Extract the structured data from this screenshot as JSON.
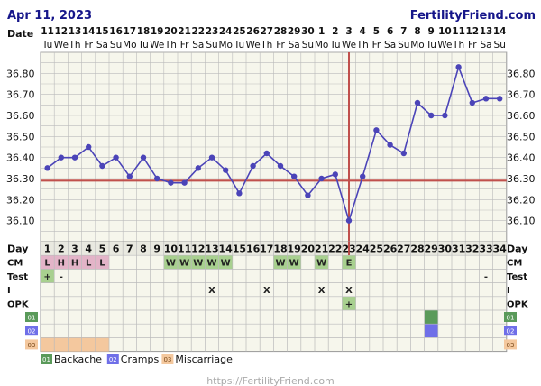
{
  "header": {
    "date": "Apr 11, 2023",
    "brand": "FertilityFriend.com",
    "footer_url": "https://FertilityFriend.com"
  },
  "row_labels": {
    "date": "Date",
    "day": "Day",
    "cm": "CM",
    "test": "Test",
    "intercourse": "I",
    "opk": "OPK"
  },
  "dates": [
    "11",
    "12",
    "13",
    "14",
    "15",
    "16",
    "17",
    "18",
    "19",
    "20",
    "21",
    "22",
    "23",
    "24",
    "25",
    "26",
    "27",
    "28",
    "29",
    "30",
    "1",
    "2",
    "3",
    "4",
    "5",
    "6",
    "7",
    "8",
    "9",
    "10",
    "11",
    "12",
    "13",
    "14"
  ],
  "weekdays": [
    "Tu",
    "We",
    "Th",
    "Fr",
    "Sa",
    "Su",
    "Mo",
    "Tu",
    "We",
    "Th",
    "Fr",
    "Sa",
    "Su",
    "Mo",
    "Tu",
    "We",
    "Th",
    "Fr",
    "Sa",
    "Su",
    "Mo",
    "Tu",
    "We",
    "Th",
    "Fr",
    "Sa",
    "Su",
    "Mo",
    "Tu",
    "We",
    "Th",
    "Fr",
    "Sa",
    "Su"
  ],
  "day_numbers": [
    "1",
    "2",
    "3",
    "4",
    "5",
    "6",
    "7",
    "8",
    "9",
    "10",
    "11",
    "12",
    "13",
    "14",
    "15",
    "16",
    "17",
    "18",
    "19",
    "20",
    "21",
    "22",
    "23",
    "24",
    "25",
    "26",
    "27",
    "28",
    "29",
    "30",
    "31",
    "32",
    "33",
    "34"
  ],
  "chart_data": {
    "type": "line",
    "x": [
      1,
      2,
      3,
      4,
      5,
      6,
      7,
      8,
      9,
      10,
      11,
      12,
      13,
      14,
      15,
      16,
      17,
      18,
      19,
      20,
      21,
      22,
      23,
      24,
      25,
      26,
      27,
      28,
      29,
      30,
      31,
      32,
      33,
      34
    ],
    "series": [
      {
        "values": [
          36.35,
          36.4,
          36.4,
          36.45,
          36.36,
          36.4,
          36.31,
          36.4,
          36.3,
          36.28,
          36.28,
          36.35,
          36.4,
          36.34,
          36.23,
          36.36,
          36.42,
          36.36,
          36.31,
          36.22,
          36.3,
          36.32,
          36.1,
          36.31,
          36.53,
          36.46,
          36.42,
          36.66,
          36.6,
          36.6,
          36.83,
          36.66,
          36.68,
          36.68
        ]
      }
    ],
    "yticks": [
      36.1,
      36.2,
      36.3,
      36.4,
      36.5,
      36.6,
      36.7,
      36.8
    ],
    "ylim": [
      36.0,
      36.9
    ],
    "coverline": 36.29,
    "ovulation_day": 23,
    "grid": true,
    "line_color": "#4b44b8",
    "coverline_color": "#c0504d",
    "ovulation_color": "#c0504d"
  },
  "rows": {
    "cm": {
      "1": "L",
      "2": "H",
      "3": "H",
      "4": "L",
      "5": "L",
      "10": "W",
      "11": "W",
      "12": "W",
      "13": "W",
      "14": "W",
      "18": "W",
      "19": "W",
      "21": "W",
      "23": "E"
    },
    "test": {
      "1": "+",
      "2": "-",
      "33": "-"
    },
    "intercourse": {
      "13": "X",
      "17": "X",
      "21": "X",
      "23": "X"
    },
    "opk": {
      "23": "+"
    }
  },
  "custom_rows": [
    {
      "code": "01",
      "name": "Backache",
      "color": "#5a9a5a",
      "days": [
        29
      ]
    },
    {
      "code": "02",
      "name": "Cramps",
      "color": "#6f6fe8",
      "days": [
        29
      ]
    },
    {
      "code": "03",
      "name": "Miscarriage",
      "color": "#f4c89e",
      "days": [
        1,
        2,
        3,
        4,
        5
      ]
    }
  ],
  "colors": {
    "menstrual": "#e3b4c8",
    "cm_green": "#a8d08f",
    "grid": "#bbbbbb",
    "bg_grid": "#f6f6ec"
  }
}
